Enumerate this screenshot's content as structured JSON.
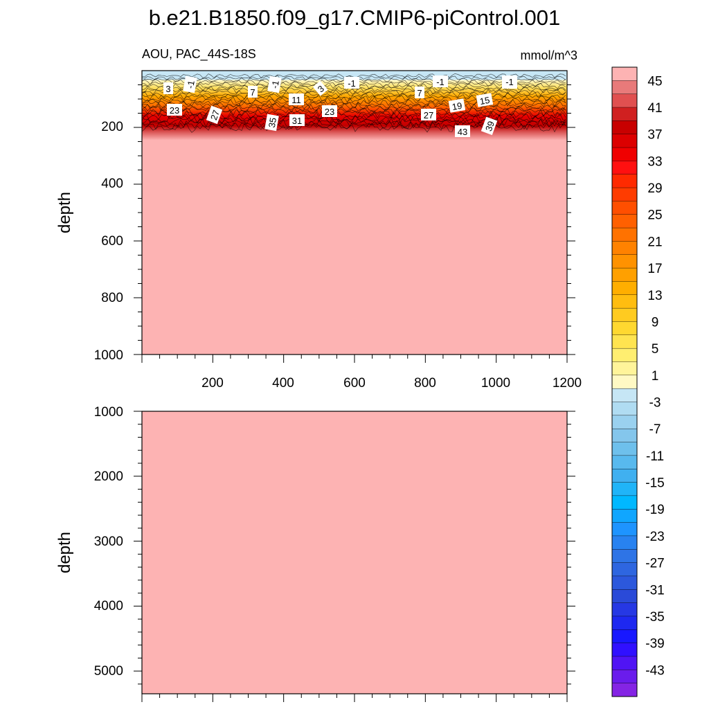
{
  "title": "b.e21.B1850.f09_g17.CMIP6-piControl.001",
  "top_panel": {
    "left_label": "AOU, PAC_44S-18S",
    "right_label": "mmol/m^3",
    "ylabel": "depth",
    "yticks": [
      "200",
      "400",
      "600",
      "800",
      "1000"
    ],
    "xticks": [
      "200",
      "400",
      "600",
      "800",
      "1000",
      "1200"
    ]
  },
  "bottom_panel": {
    "ylabel": "depth",
    "yticks": [
      "1000",
      "2000",
      "3000",
      "4000",
      "5000"
    ]
  },
  "colorbar": {
    "labels": [
      "45",
      "41",
      "37",
      "33",
      "29",
      "25",
      "21",
      "17",
      "13",
      "9",
      "5",
      "1",
      "-3",
      "-7",
      "-11",
      "-15",
      "-19",
      "-23",
      "-27",
      "-31",
      "-35",
      "-39",
      "-43"
    ],
    "colors": [
      "#fdb3b3",
      "#e87a7a",
      "#e05050",
      "#d02020",
      "#c80000",
      "#dc0000",
      "#f00000",
      "#ff1010",
      "#ff2a00",
      "#ff3c00",
      "#ff4f00",
      "#ff6000",
      "#ff7200",
      "#ff8200",
      "#ff9200",
      "#ffa000",
      "#ffae00",
      "#ffbd10",
      "#ffcb20",
      "#ffd830",
      "#ffe450",
      "#ffee70",
      "#fff49a",
      "#fff9c4",
      "#c6e6f5",
      "#b0dcf2",
      "#9ad1ef",
      "#84c6ec",
      "#6ec0ec",
      "#58b9ee",
      "#40b0f0",
      "#20b4f8",
      "#00b8ff",
      "#10a6ff",
      "#1e94ff",
      "#2882f0",
      "#2e74e6",
      "#2e66e0",
      "#2c58dc",
      "#2a4ad8",
      "#2638e4",
      "#1e28f0",
      "#1818ff",
      "#3010ff",
      "#5014f4",
      "#6a1cec",
      "#8424e4"
    ]
  },
  "chart_data": [
    {
      "type": "heatmap",
      "title": "b.e21.B1850.f09_g17.CMIP6-piControl.001",
      "variable": "AOU, PAC_44S-18S",
      "units": "mmol/m^3",
      "ylabel": "depth",
      "xlim": [
        0,
        1200
      ],
      "ylim": [
        1000,
        0
      ],
      "y_reversed": true,
      "contour_labels": [
        "-1",
        "-1",
        "-1",
        "-1",
        "-1",
        "-1",
        "3",
        "3",
        "7",
        "7",
        "11",
        "15",
        "19",
        "23",
        "23",
        "27",
        "27",
        "31",
        "35",
        "39",
        "43"
      ],
      "profile": [
        {
          "depth": 0,
          "value": -3
        },
        {
          "depth": 25,
          "value": -1
        },
        {
          "depth": 50,
          "value": 3
        },
        {
          "depth": 80,
          "value": 7
        },
        {
          "depth": 100,
          "value": 11
        },
        {
          "depth": 120,
          "value": 15
        },
        {
          "depth": 140,
          "value": 19
        },
        {
          "depth": 155,
          "value": 23
        },
        {
          "depth": 165,
          "value": 27
        },
        {
          "depth": 175,
          "value": 31
        },
        {
          "depth": 185,
          "value": 35
        },
        {
          "depth": 195,
          "value": 39
        },
        {
          "depth": 205,
          "value": 43
        },
        {
          "depth": 230,
          "value": 45
        },
        {
          "depth": 1000,
          "value": 45
        }
      ]
    },
    {
      "type": "heatmap",
      "ylabel": "depth",
      "xlim": [
        0,
        1200
      ],
      "ylim": [
        5350,
        1000
      ],
      "y_reversed": true,
      "profile": [
        {
          "depth": 1000,
          "value": 45
        },
        {
          "depth": 5350,
          "value": 45
        }
      ]
    }
  ]
}
